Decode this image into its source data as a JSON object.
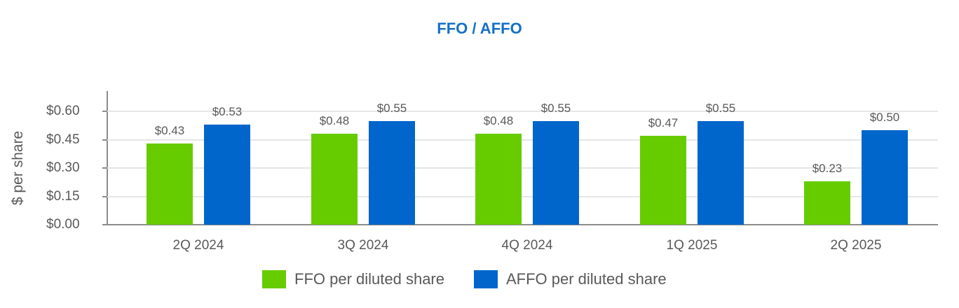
{
  "chart_data": {
    "type": "bar",
    "title": "FFO / AFFO",
    "xlabel": "",
    "ylabel": "$ per share",
    "ylim": [
      0,
      0.6
    ],
    "yticks": [
      "$0.00",
      "$0.15",
      "$0.30",
      "$0.45",
      "$0.60"
    ],
    "categories": [
      "2Q 2024",
      "3Q 2024",
      "4Q 2024",
      "1Q 2025",
      "2Q 2025"
    ],
    "series": [
      {
        "name": "FFO per diluted share",
        "color": "#66cc00",
        "values": [
          0.43,
          0.48,
          0.48,
          0.47,
          0.23
        ],
        "labels": [
          "$0.43",
          "$0.48",
          "$0.48",
          "$0.47",
          "$0.23"
        ]
      },
      {
        "name": "AFFO per diluted share",
        "color": "#0066cc",
        "values": [
          0.53,
          0.55,
          0.55,
          0.55,
          0.5
        ],
        "labels": [
          "$0.53",
          "$0.55",
          "$0.55",
          "$0.55",
          "$0.50"
        ]
      }
    ],
    "grid": true,
    "legend_position": "bottom"
  }
}
